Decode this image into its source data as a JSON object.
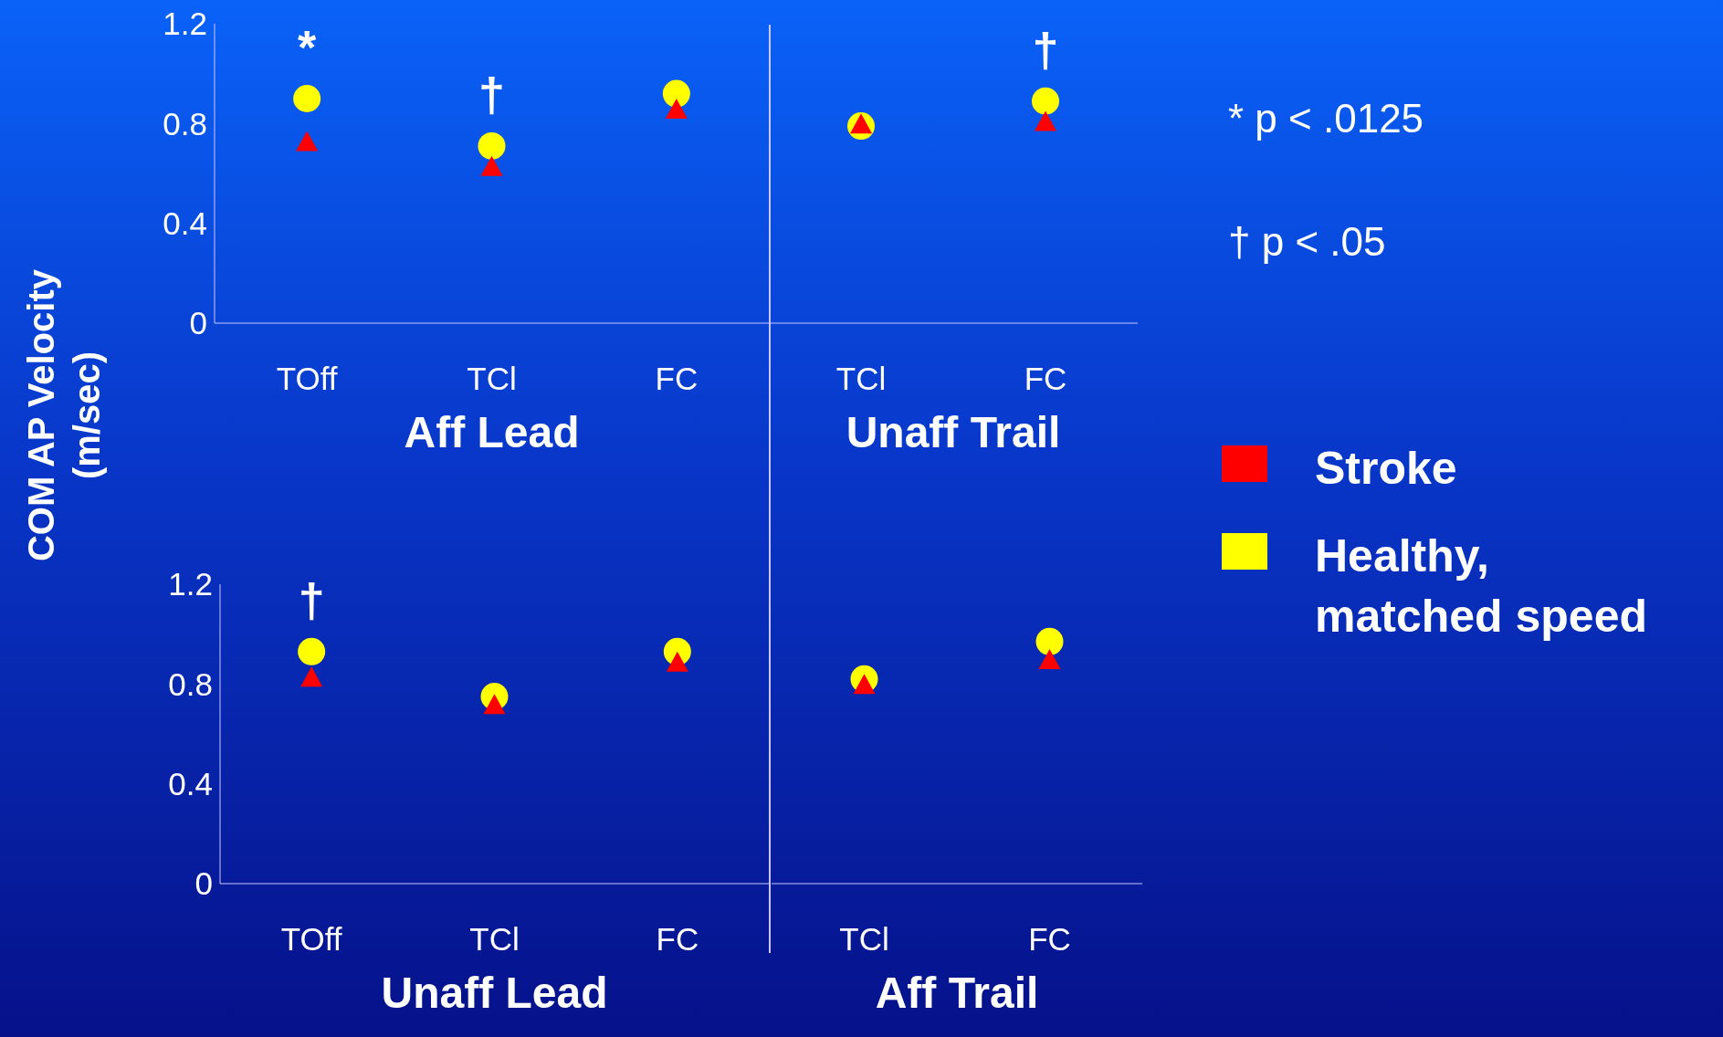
{
  "chart_data": [
    {
      "type": "scatter",
      "ylabel": "COM AP Velocity (m/sec)",
      "xlabel": "Aff Lead",
      "categories": [
        "TOff",
        "TCl",
        "FC"
      ],
      "ylim": [
        0,
        1.2
      ],
      "yticks": [
        0,
        0.4,
        0.8,
        1.2
      ],
      "legend": "right",
      "series": [
        {
          "name": "Stroke",
          "color": "#ff0000",
          "marker": "triangle",
          "values": [
            0.73,
            0.63,
            0.86
          ]
        },
        {
          "name": "Healthy, matched speed",
          "color": "#ffff00",
          "marker": "circle",
          "values": [
            0.9,
            0.71,
            0.92
          ],
          "value_labels": [
            "*",
            "†",
            null
          ]
        }
      ]
    },
    {
      "type": "scatter",
      "xlabel": "Unaff Trail",
      "categories": [
        "TCl",
        "FC"
      ],
      "ylim": [
        0,
        1.2
      ],
      "yticks": [
        0,
        0.4,
        0.8,
        1.2
      ],
      "tick_labels": "x",
      "series": [
        {
          "color": "#ff0000",
          "marker": "triangle",
          "values": [
            0.8,
            0.81
          ]
        },
        {
          "color": "#ffff00",
          "marker": "circle",
          "values": [
            0.79,
            0.89
          ],
          "value_labels": [
            null,
            "†"
          ]
        }
      ],
      "annotations": [
        "* p < .0125",
        "† p < .05"
      ]
    },
    {
      "type": "scatter",
      "xlabel": "Unaff Lead",
      "categories": [
        "TOff",
        "TCl",
        "FC"
      ],
      "ylim": [
        0,
        1.2
      ],
      "yticks": [
        0,
        0.4,
        0.8,
        1.2
      ],
      "series": [
        {
          "color": "#ff0000",
          "marker": "triangle",
          "values": [
            0.83,
            0.72,
            0.89
          ]
        },
        {
          "color": "#ffff00",
          "marker": "circle",
          "values": [
            0.93,
            0.75,
            0.93
          ],
          "value_labels": [
            "†",
            null,
            null
          ]
        }
      ]
    },
    {
      "type": "scatter",
      "xlabel": "Aff Trail",
      "categories": [
        "TCl",
        "FC"
      ],
      "ylim": [
        0,
        1.2
      ],
      "yticks": [
        0,
        0.4,
        0.8,
        1.2
      ],
      "tick_labels": "x",
      "series": [
        {
          "color": "#ff0000",
          "marker": "triangle",
          "values": [
            0.8,
            0.9
          ]
        },
        {
          "color": "#ffff00",
          "marker": "circle",
          "values": [
            0.82,
            0.97
          ]
        }
      ]
    }
  ]
}
